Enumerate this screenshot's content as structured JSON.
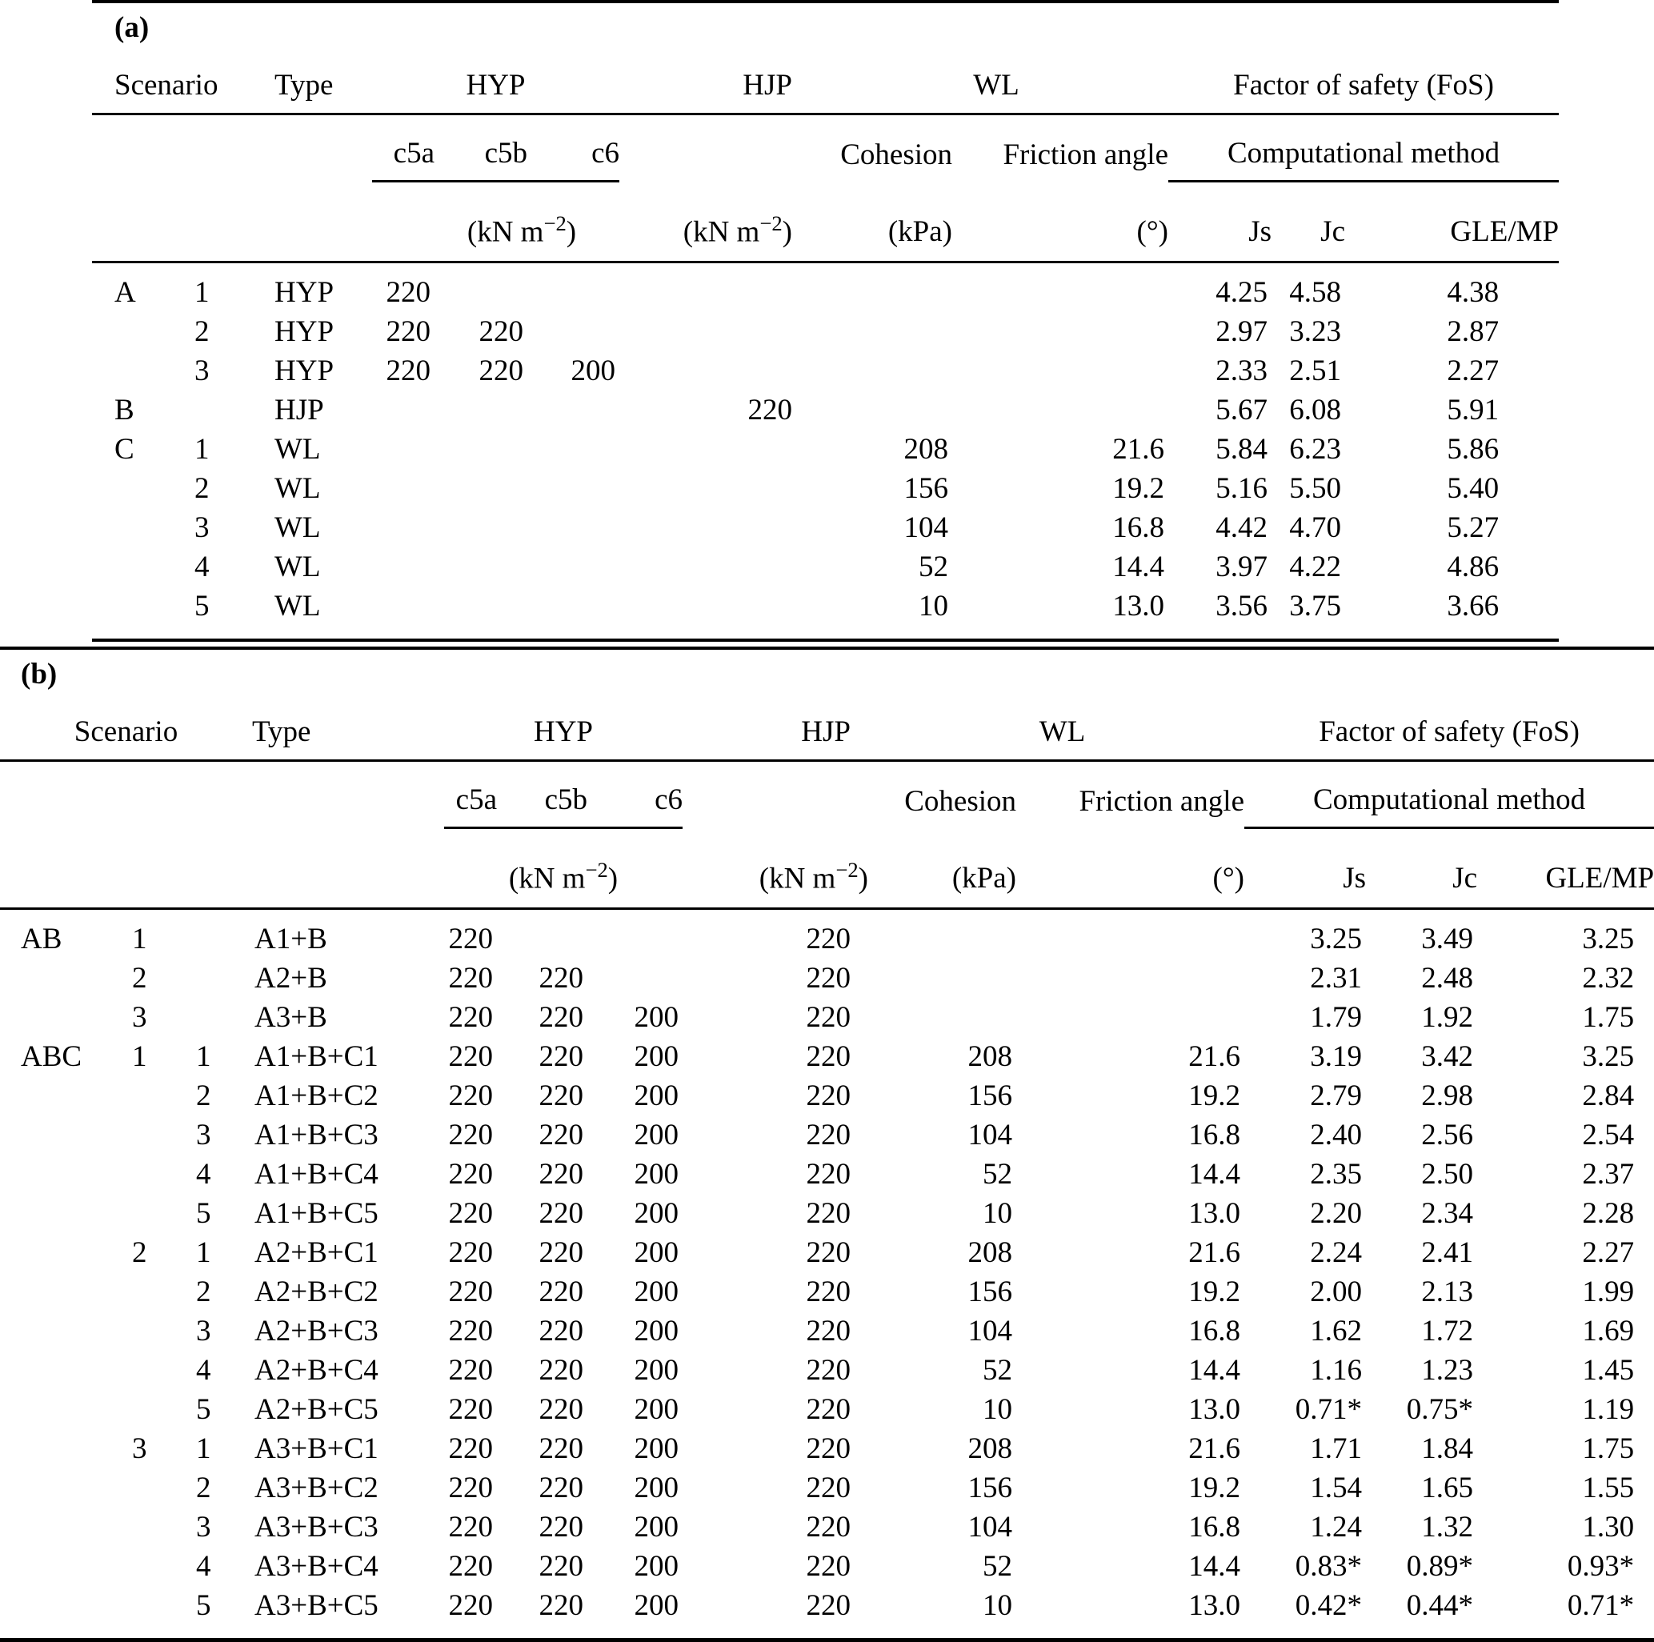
{
  "table_a": {
    "label": "(a)",
    "headers": {
      "scenario": "Scenario",
      "type": "Type",
      "hyp": "HYP",
      "hjp": "HJP",
      "wl": "WL",
      "fos": "Factor of safety (FoS)",
      "c5a": "c5a",
      "c5b": "c5b",
      "c6": "c6",
      "cohesion": "Cohesion",
      "friction_angle": "Friction angle",
      "computational_method": "Computational method",
      "js": "Js",
      "jc": "Jc",
      "gle_mp": "GLE/MP",
      "unit_knm_prefix": "(kN m",
      "unit_knm_sup": "−2",
      "unit_knm_suffix": ")",
      "unit_kpa": "(kPa)",
      "unit_degree": "(°)"
    },
    "rows": [
      [
        "A",
        "1",
        "HYP",
        "220",
        "",
        "",
        "",
        "",
        "",
        "4.25",
        "4.58",
        "4.38"
      ],
      [
        "",
        "2",
        "HYP",
        "220",
        "220",
        "",
        "",
        "",
        "",
        "2.97",
        "3.23",
        "2.87"
      ],
      [
        "",
        "3",
        "HYP",
        "220",
        "220",
        "200",
        "",
        "",
        "",
        "2.33",
        "2.51",
        "2.27"
      ],
      [
        "B",
        "",
        "HJP",
        "",
        "",
        "",
        "220",
        "",
        "",
        "5.67",
        "6.08",
        "5.91"
      ],
      [
        "C",
        "1",
        "WL",
        "",
        "",
        "",
        "",
        "208",
        "21.6",
        "5.84",
        "6.23",
        "5.86"
      ],
      [
        "",
        "2",
        "WL",
        "",
        "",
        "",
        "",
        "156",
        "19.2",
        "5.16",
        "5.50",
        "5.40"
      ],
      [
        "",
        "3",
        "WL",
        "",
        "",
        "",
        "",
        "104",
        "16.8",
        "4.42",
        "4.70",
        "5.27"
      ],
      [
        "",
        "4",
        "WL",
        "",
        "",
        "",
        "",
        "52",
        "14.4",
        "3.97",
        "4.22",
        "4.86"
      ],
      [
        "",
        "5",
        "WL",
        "",
        "",
        "",
        "",
        "10",
        "13.0",
        "3.56",
        "3.75",
        "3.66"
      ]
    ]
  },
  "table_b": {
    "label": "(b)",
    "headers": {
      "scenario": "Scenario",
      "type": "Type",
      "hyp": "HYP",
      "hjp": "HJP",
      "wl": "WL",
      "fos": "Factor of safety (FoS)",
      "c5a": "c5a",
      "c5b": "c5b",
      "c6": "c6",
      "cohesion": "Cohesion",
      "friction_angle": "Friction angle",
      "computational_method": "Computational method",
      "js": "Js",
      "jc": "Jc",
      "gle_mp": "GLE/MP",
      "unit_knm_prefix": "(kN m",
      "unit_knm_sup": "−2",
      "unit_knm_suffix": ")",
      "unit_kpa": "(kPa)",
      "unit_degree": "(°)"
    },
    "rows": [
      [
        "AB",
        "1",
        "",
        "A1+B",
        "220",
        "",
        "",
        "220",
        "",
        "",
        "3.25",
        "3.49",
        "3.25"
      ],
      [
        "",
        "2",
        "",
        "A2+B",
        "220",
        "220",
        "",
        "220",
        "",
        "",
        "2.31",
        "2.48",
        "2.32"
      ],
      [
        "",
        "3",
        "",
        "A3+B",
        "220",
        "220",
        "200",
        "220",
        "",
        "",
        "1.79",
        "1.92",
        "1.75"
      ],
      [
        "ABC",
        "1",
        "1",
        "A1+B+C1",
        "220",
        "220",
        "200",
        "220",
        "208",
        "21.6",
        "3.19",
        "3.42",
        "3.25"
      ],
      [
        "",
        "",
        "2",
        "A1+B+C2",
        "220",
        "220",
        "200",
        "220",
        "156",
        "19.2",
        "2.79",
        "2.98",
        "2.84"
      ],
      [
        "",
        "",
        "3",
        "A1+B+C3",
        "220",
        "220",
        "200",
        "220",
        "104",
        "16.8",
        "2.40",
        "2.56",
        "2.54"
      ],
      [
        "",
        "",
        "4",
        "A1+B+C4",
        "220",
        "220",
        "200",
        "220",
        "52",
        "14.4",
        "2.35",
        "2.50",
        "2.37"
      ],
      [
        "",
        "",
        "5",
        "A1+B+C5",
        "220",
        "220",
        "200",
        "220",
        "10",
        "13.0",
        "2.20",
        "2.34",
        "2.28"
      ],
      [
        "",
        "2",
        "1",
        "A2+B+C1",
        "220",
        "220",
        "200",
        "220",
        "208",
        "21.6",
        "2.24",
        "2.41",
        "2.27"
      ],
      [
        "",
        "",
        "2",
        "A2+B+C2",
        "220",
        "220",
        "200",
        "220",
        "156",
        "19.2",
        "2.00",
        "2.13",
        "1.99"
      ],
      [
        "",
        "",
        "3",
        "A2+B+C3",
        "220",
        "220",
        "200",
        "220",
        "104",
        "16.8",
        "1.62",
        "1.72",
        "1.69"
      ],
      [
        "",
        "",
        "4",
        "A2+B+C4",
        "220",
        "220",
        "200",
        "220",
        "52",
        "14.4",
        "1.16",
        "1.23",
        "1.45"
      ],
      [
        "",
        "",
        "5",
        "A2+B+C5",
        "220",
        "220",
        "200",
        "220",
        "10",
        "13.0",
        "0.71*",
        "0.75*",
        "1.19"
      ],
      [
        "",
        "3",
        "1",
        "A3+B+C1",
        "220",
        "220",
        "200",
        "220",
        "208",
        "21.6",
        "1.71",
        "1.84",
        "1.75"
      ],
      [
        "",
        "",
        "2",
        "A3+B+C2",
        "220",
        "220",
        "200",
        "220",
        "156",
        "19.2",
        "1.54",
        "1.65",
        "1.55"
      ],
      [
        "",
        "",
        "3",
        "A3+B+C3",
        "220",
        "220",
        "200",
        "220",
        "104",
        "16.8",
        "1.24",
        "1.32",
        "1.30"
      ],
      [
        "",
        "",
        "4",
        "A3+B+C4",
        "220",
        "220",
        "200",
        "220",
        "52",
        "14.4",
        "0.83*",
        "0.89*",
        "0.93*"
      ],
      [
        "",
        "",
        "5",
        "A3+B+C5",
        "220",
        "220",
        "200",
        "220",
        "10",
        "13.0",
        "0.42*",
        "0.44*",
        "0.71*"
      ]
    ]
  }
}
